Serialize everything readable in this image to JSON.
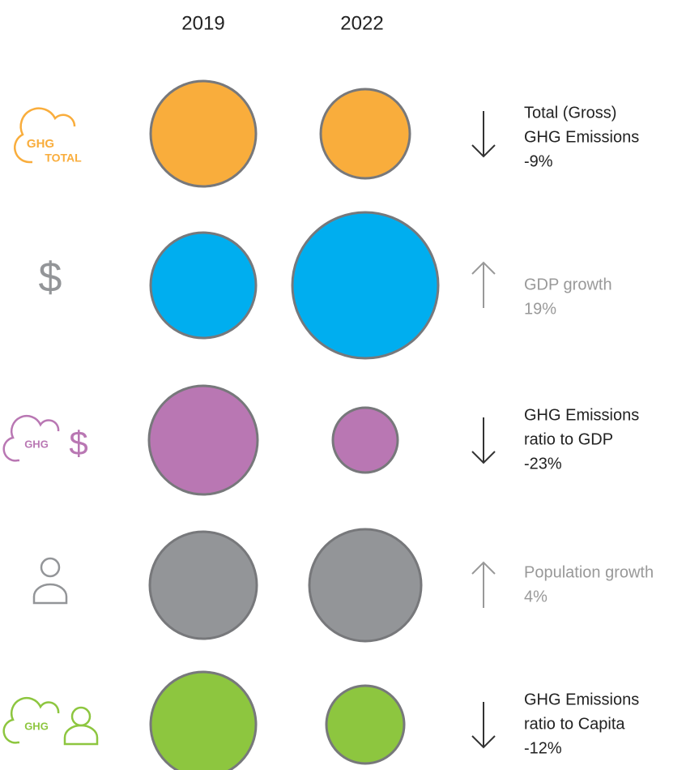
{
  "columns": [
    "2019",
    "2022"
  ],
  "rows": [
    {
      "icon_text": [
        "GHG",
        "TOTAL"
      ],
      "label": [
        "Total (Gross)",
        "GHG Emissions",
        "-9%"
      ],
      "color": "#f9ad3c"
    },
    {
      "icon_text": [
        "$"
      ],
      "label": [
        "GDP growth",
        "19%"
      ],
      "color": "#00aeef"
    },
    {
      "icon_text": [
        "GHG",
        "$"
      ],
      "label": [
        "GHG Emissions",
        "ratio to GDP",
        "-23%"
      ],
      "color": "#b977b3"
    },
    {
      "icon_text": [],
      "label": [
        "Population growth",
        "4%"
      ],
      "color": "#939598"
    },
    {
      "icon_text": [
        "GHG"
      ],
      "label": [
        "GHG Emissions",
        "ratio to Capita",
        "-12%"
      ],
      "color": "#8dc63f"
    }
  ]
}
